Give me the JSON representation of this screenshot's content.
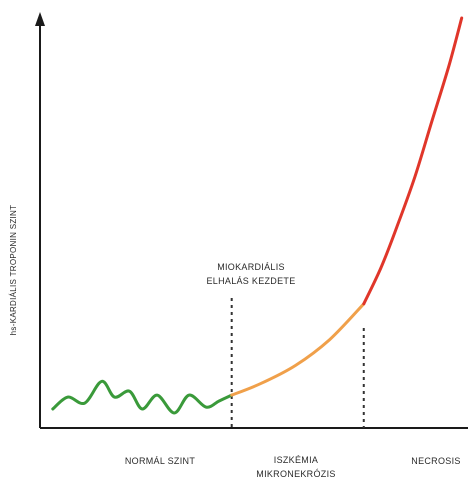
{
  "chart_data": {
    "type": "line",
    "ylabel": "hs-KARDIÁLIS TROPONIN SZINT",
    "xlabel": "",
    "annotation": {
      "lines": [
        "MIOKARDIÁLIS",
        "ELHALÁS KEZDETE"
      ]
    },
    "regions": [
      {
        "lines": [
          "NORMÁL SZINT"
        ]
      },
      {
        "lines": [
          "ISZKÉMIA",
          "MIKRONEKRÓZIS"
        ]
      },
      {
        "lines": [
          "NECROSIS"
        ]
      }
    ],
    "x_range": [
      0,
      10
    ],
    "y_range": [
      0,
      10
    ],
    "markers_x": [
      4.5,
      7.6
    ],
    "series": [
      {
        "segment": "normal",
        "color": "#3a9a3a",
        "x": [
          0.3,
          0.65,
          1.05,
          1.45,
          1.75,
          2.1,
          2.4,
          2.75,
          3.15,
          3.5,
          3.9,
          4.2,
          4.5
        ],
        "y": [
          0.15,
          0.45,
          0.3,
          0.85,
          0.45,
          0.6,
          0.15,
          0.5,
          0.05,
          0.5,
          0.2,
          0.35,
          0.5
        ]
      },
      {
        "segment": "ischemia",
        "color": "#f0a04a",
        "x": [
          4.5,
          5.2,
          6.0,
          6.8,
          7.6
        ],
        "y": [
          0.5,
          0.8,
          1.25,
          1.9,
          2.8
        ]
      },
      {
        "segment": "necrosis",
        "color": "#e0362a",
        "x": [
          7.6,
          8.0,
          8.4,
          8.8,
          9.2,
          9.6,
          9.9
        ],
        "y": [
          2.8,
          3.7,
          4.8,
          6.0,
          7.4,
          8.8,
          10.0
        ]
      }
    ],
    "grid": false,
    "legend": "none"
  }
}
